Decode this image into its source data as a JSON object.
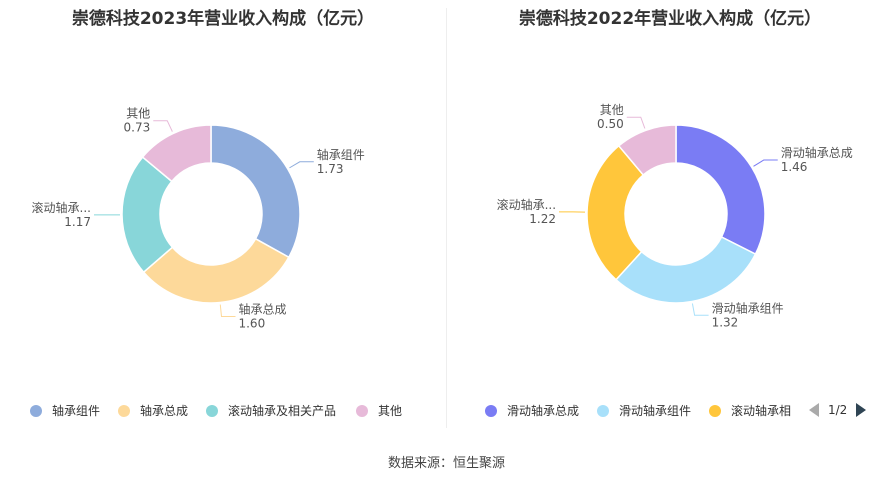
{
  "chart_data": [
    {
      "type": "pie",
      "title": "崇德科技2023年营业收入构成（亿元）",
      "categories": [
        "轴承组件",
        "轴承总成",
        "滚动轴承及相关产品",
        "其他"
      ],
      "slice_labels": [
        "轴承组件",
        "轴承总成",
        "滚动轴承...",
        "其他"
      ],
      "value_labels": [
        "1.73",
        "1.60",
        "1.17",
        "0.73"
      ],
      "values": [
        1.73,
        1.6,
        1.17,
        0.73
      ],
      "colors": [
        "#8eacdc",
        "#fdd99a",
        "#88d6d9",
        "#e7bad9"
      ],
      "legend_position": "bottom"
    },
    {
      "type": "pie",
      "title": "崇德科技2022年营业收入构成（亿元）",
      "categories": [
        "滑动轴承总成",
        "滑动轴承组件",
        "滚动轴承",
        "其他"
      ],
      "slice_labels": [
        "滑动轴承总成",
        "滑动轴承组件",
        "滚动轴承...",
        "其他"
      ],
      "value_labels": [
        "1.46",
        "1.32",
        "1.22",
        "0.50"
      ],
      "legend_labels": [
        "滑动轴承总成",
        "滑动轴承组件",
        "滚动轴承相"
      ],
      "values": [
        1.46,
        1.32,
        1.22,
        0.5
      ],
      "colors": [
        "#7a7cf4",
        "#a8e0fa",
        "#ffc63b",
        "#e7bad9"
      ],
      "legend_position": "bottom",
      "legend_page": "1/2"
    }
  ],
  "source": "数据来源：恒生聚源"
}
